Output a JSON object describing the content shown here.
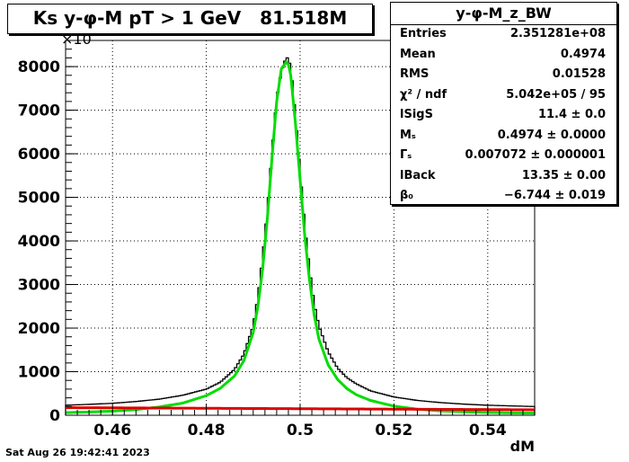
{
  "title": "Ks y-φ-M pT > 1 GeV   81.518M",
  "timestamp": "Sat Aug 26 19:42:41 2023",
  "stats": {
    "name": "y-φ-M_z_BW",
    "rows": [
      {
        "key": "Entries",
        "value": "2.351281e+08"
      },
      {
        "key": "Mean",
        "value": "0.4974"
      },
      {
        "key": "RMS",
        "value": "0.01528"
      },
      {
        "key": "χ² / ndf",
        "value": "5.042e+05 / 95"
      },
      {
        "key": "lSigS",
        "value": "11.4 ± 0.0"
      },
      {
        "key": "Mₛ",
        "value": "0.4974 ± 0.0000"
      },
      {
        "key": "Γₛ",
        "value": "0.007072 ± 0.000001"
      },
      {
        "key": "lBack",
        "value": "13.35 ± 0.00"
      },
      {
        "key": "β₀",
        "value": "−6.744 ± 0.019"
      }
    ]
  },
  "chart_data": {
    "type": "line",
    "xlabel": "dM",
    "ylabel": "",
    "yexponent_label": "×10",
    "xlim": [
      0.45,
      0.55
    ],
    "ylim": [
      0,
      8600
    ],
    "xticks": [
      "0.46",
      "0.48",
      "0.5",
      "0.52",
      "0.54"
    ],
    "yticks": [
      "0",
      "1000",
      "2000",
      "3000",
      "4000",
      "5000",
      "6000",
      "7000",
      "8000"
    ],
    "grid": true,
    "series": [
      {
        "role": "histogram",
        "color": "#000000",
        "x": [
          0.45,
          0.455,
          0.46,
          0.465,
          0.47,
          0.475,
          0.48,
          0.483,
          0.486,
          0.488,
          0.49,
          0.491,
          0.492,
          0.493,
          0.494,
          0.495,
          0.496,
          0.497,
          0.4975,
          0.498,
          0.499,
          0.5,
          0.501,
          0.502,
          0.503,
          0.504,
          0.506,
          0.508,
          0.51,
          0.512,
          0.515,
          0.52,
          0.525,
          0.53,
          0.535,
          0.54,
          0.545,
          0.55
        ],
        "y": [
          230,
          250,
          275,
          315,
          370,
          460,
          600,
          760,
          1050,
          1400,
          2050,
          2700,
          3600,
          4650,
          6000,
          7250,
          7900,
          8200,
          8200,
          7950,
          6850,
          5550,
          4300,
          3350,
          2550,
          2050,
          1450,
          1080,
          860,
          720,
          560,
          420,
          340,
          290,
          255,
          230,
          215,
          200
        ]
      },
      {
        "role": "fit-total",
        "color": "#00dd00",
        "x": [
          0.45,
          0.455,
          0.46,
          0.465,
          0.47,
          0.475,
          0.48,
          0.483,
          0.486,
          0.488,
          0.49,
          0.491,
          0.492,
          0.493,
          0.494,
          0.495,
          0.496,
          0.497,
          0.4975,
          0.498,
          0.499,
          0.5,
          0.501,
          0.502,
          0.503,
          0.504,
          0.506,
          0.508,
          0.51,
          0.512,
          0.515,
          0.52,
          0.525,
          0.53,
          0.535,
          0.54,
          0.545,
          0.55
        ],
        "y": [
          60,
          75,
          95,
          130,
          190,
          280,
          450,
          620,
          900,
          1250,
          1900,
          2500,
          3350,
          4500,
          5900,
          7200,
          7950,
          8100,
          8050,
          7800,
          6700,
          5400,
          4100,
          3100,
          2300,
          1750,
          1150,
          820,
          610,
          470,
          340,
          210,
          140,
          100,
          80,
          65,
          55,
          50
        ]
      },
      {
        "role": "fit-background",
        "color": "#dd0000",
        "x": [
          0.45,
          0.46,
          0.47,
          0.48,
          0.49,
          0.5,
          0.51,
          0.52,
          0.53,
          0.54,
          0.55
        ],
        "y": [
          175,
          170,
          165,
          160,
          155,
          150,
          145,
          140,
          135,
          130,
          125
        ]
      }
    ]
  }
}
